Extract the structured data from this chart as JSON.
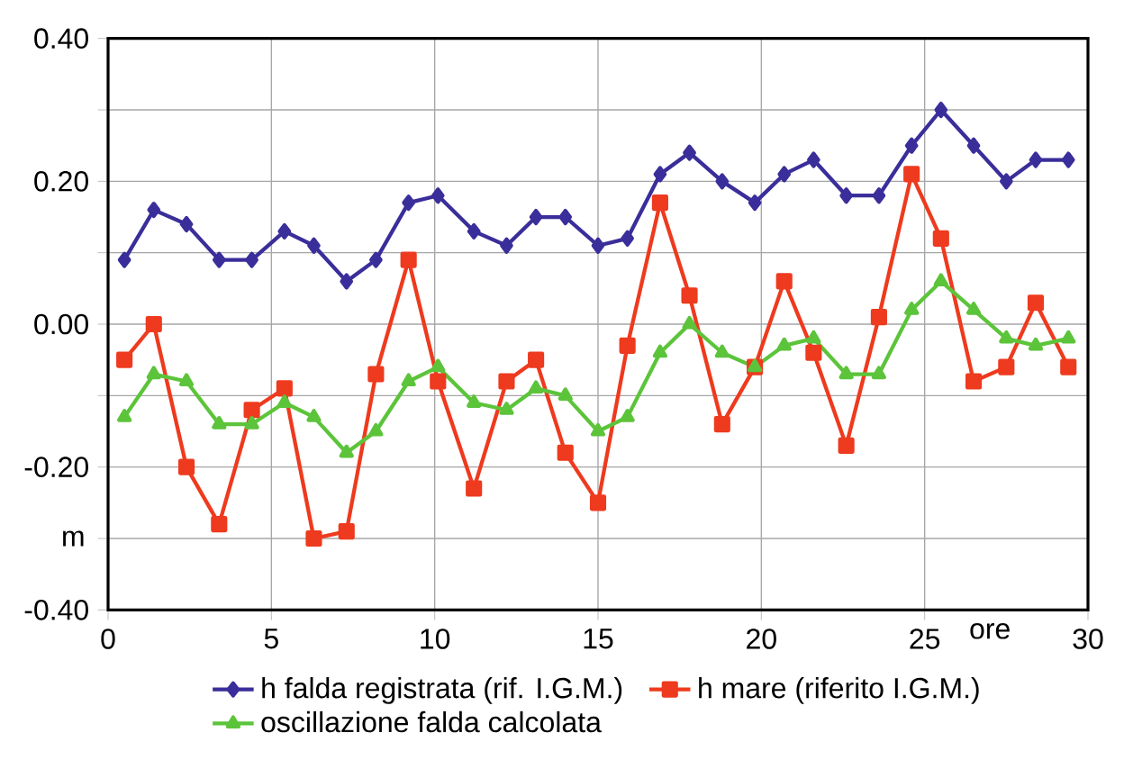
{
  "chart_data": {
    "type": "line",
    "xlabel": "ore",
    "ylabel": "m",
    "x": [
      0.5,
      1.4,
      2.4,
      3.4,
      4.4,
      5.4,
      6.3,
      7.3,
      8.2,
      9.2,
      10.1,
      11.2,
      12.2,
      13.1,
      14.0,
      15.0,
      15.9,
      16.9,
      17.8,
      18.8,
      19.8,
      20.7,
      21.6,
      22.6,
      23.6,
      24.6,
      25.5,
      26.5,
      27.5,
      28.4,
      29.4
    ],
    "series": [
      {
        "name": "h falda registrata (rif. I.G.M.)",
        "color": "#3a2e9a",
        "marker": "diamond",
        "values": [
          0.09,
          0.16,
          0.14,
          0.09,
          0.09,
          0.13,
          0.11,
          0.06,
          0.09,
          0.17,
          0.18,
          0.13,
          0.11,
          0.15,
          0.15,
          0.11,
          0.12,
          0.21,
          0.24,
          0.2,
          0.17,
          0.21,
          0.23,
          0.18,
          0.18,
          0.25,
          0.3,
          0.25,
          0.2,
          0.23,
          0.23
        ]
      },
      {
        "name": "h mare (riferito I.G.M.)",
        "color": "#ee3a1e",
        "marker": "square",
        "values": [
          -0.05,
          0.0,
          -0.2,
          -0.28,
          -0.12,
          -0.09,
          -0.3,
          -0.29,
          -0.07,
          0.09,
          -0.08,
          -0.23,
          -0.08,
          -0.05,
          -0.18,
          -0.25,
          -0.03,
          0.17,
          0.04,
          -0.14,
          -0.06,
          0.06,
          -0.04,
          -0.17,
          0.01,
          0.21,
          0.12,
          -0.08,
          -0.06,
          0.03,
          -0.06
        ]
      },
      {
        "name": "oscillazione falda calcolata",
        "color": "#5cc43a",
        "marker": "triangle",
        "values": [
          -0.13,
          -0.07,
          -0.08,
          -0.14,
          -0.14,
          -0.11,
          -0.13,
          -0.18,
          -0.15,
          -0.08,
          -0.06,
          -0.11,
          -0.12,
          -0.09,
          -0.1,
          -0.15,
          -0.13,
          -0.04,
          0.0,
          -0.04,
          -0.06,
          -0.03,
          -0.02,
          -0.07,
          -0.07,
          0.02,
          0.06,
          0.02,
          -0.02,
          -0.03,
          -0.02
        ]
      }
    ],
    "xlim": [
      0,
      30
    ],
    "ylim": [
      -0.4,
      0.4
    ],
    "xticks": [
      0,
      5,
      10,
      15,
      20,
      25,
      30
    ],
    "yticks": [
      {
        "value": -0.4,
        "label": "-0.40"
      },
      {
        "value": -0.3,
        "label": null
      },
      {
        "value": -0.2,
        "label": "-0.20"
      },
      {
        "value": -0.1,
        "label": null
      },
      {
        "value": 0,
        "label": "0.00"
      },
      {
        "value": 0.1,
        "label": null
      },
      {
        "value": 0.2,
        "label": "0.20"
      },
      {
        "value": 0.3,
        "label": null
      },
      {
        "value": 0.4,
        "label": "0.40"
      }
    ],
    "grid": true,
    "legend": "bottom",
    "line_style": "solid"
  }
}
